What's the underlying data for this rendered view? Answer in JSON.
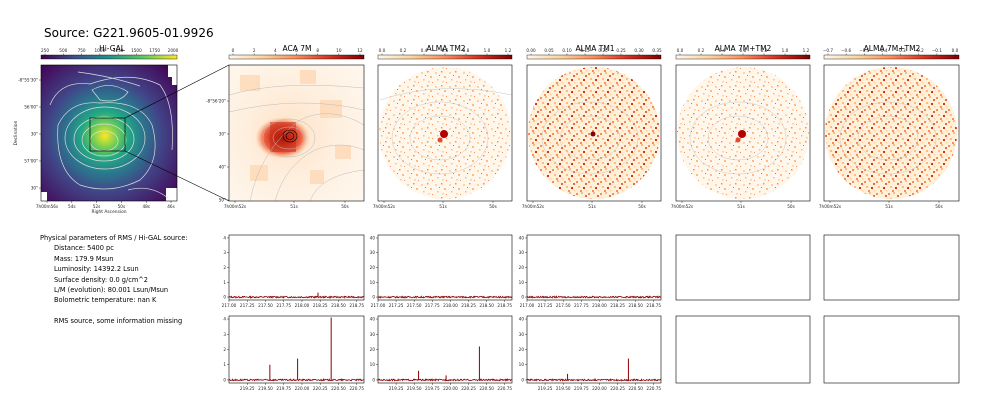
{
  "title": "Source: G221.9605-01.9926",
  "panels": [
    {
      "title": "Hi-GAL",
      "colorbar_ticks": [
        "250",
        "500",
        "750",
        "1000",
        "1250",
        "1500",
        "1750",
        "2000"
      ],
      "colormap": "viridis"
    },
    {
      "title": "ACA 7M",
      "colorbar_ticks": [
        "0",
        "2",
        "4",
        "6",
        "8",
        "10",
        "12"
      ],
      "colormap": "orrd"
    },
    {
      "title": "ALMA TM2",
      "colorbar_ticks": [
        "0.0",
        "0.2",
        "0.4",
        "0.6",
        "0.8",
        "1.0",
        "1.2"
      ],
      "colormap": "orrd"
    },
    {
      "title": "ALMA TM1",
      "colorbar_ticks": [
        "0.00",
        "0.05",
        "0.10",
        "0.15",
        "0.20",
        "0.25",
        "0.30",
        "0.35"
      ],
      "colormap": "orrd"
    },
    {
      "title": "ALMA 7M+TM2",
      "colorbar_ticks": [
        "0.0",
        "0.2",
        "0.4",
        "0.6",
        "0.8",
        "1.0",
        "1.2"
      ],
      "colormap": "orrd"
    },
    {
      "title": "ALMA 7M+TM2",
      "colorbar_ticks": [
        "−0.7",
        "−0.6",
        "−0.5",
        "−0.4",
        "−0.3",
        "−0.2",
        "−0.1",
        "0.0"
      ],
      "colormap": "orrd"
    }
  ],
  "higal_axes": {
    "xlabel": "Right Ascension",
    "ylabel": "Declination",
    "xticks": [
      "7h00m56s",
      "54s",
      "52s",
      "50s",
      "48s",
      "46s"
    ],
    "yticks": [
      "-8°55'30\"",
      "56'00\"",
      "30\"",
      "57'00\"",
      "30\""
    ]
  },
  "aca_axes": {
    "xticks": [
      "7h00m52s",
      "51s",
      "50s"
    ],
    "yticks": [
      "-8°56'20\"",
      "30\"",
      "40\"",
      "50\""
    ]
  },
  "tm_axes": {
    "xticks": [
      "7h00m52s",
      "51s",
      "50s"
    ]
  },
  "info": {
    "header": "Physical parameters of RMS / Hi-GAL source:",
    "lines": [
      "Distance: 5400 pc",
      "Mass: 179.9 Msun",
      "Luminosity: 14392.2 Lsun",
      "Surface density: 0.0 g/cm^2",
      "L/M (evolution): 80.001 Lsun/Msun",
      "Bolometric temperature: nan K"
    ],
    "footer": "RMS source, some information missing"
  },
  "colors": {
    "spectrum_line": "#8b0000",
    "frame": "#000000",
    "contour": "#c8c8c8"
  },
  "chart_data": [
    {
      "type": "line",
      "title": "",
      "xticks": [
        "217.00",
        "217.25",
        "217.50",
        "217.75",
        "218.00",
        "218.25",
        "218.50",
        "218.75"
      ],
      "yticks": [
        "0",
        "1",
        "2",
        "3",
        "4"
      ],
      "xlim": [
        217.0,
        218.85
      ],
      "ylim": [
        -0.2,
        4.2
      ],
      "baseline": 0.0,
      "peaks": [
        {
          "x": 218.22,
          "y": 0.3
        }
      ]
    },
    {
      "type": "line",
      "title": "",
      "xticks": [
        "217.00",
        "217.25",
        "217.50",
        "217.75",
        "218.00",
        "218.25",
        "218.50",
        "218.75"
      ],
      "yticks": [
        "0",
        "10",
        "20",
        "30",
        "40"
      ],
      "xlim": [
        217.0,
        218.85
      ],
      "ylim": [
        -2,
        42
      ],
      "baseline": 0.0,
      "peaks": []
    },
    {
      "type": "line",
      "title": "",
      "xticks": [
        "217.00",
        "217.25",
        "217.50",
        "217.75",
        "218.00",
        "218.25",
        "218.50",
        "218.75"
      ],
      "yticks": [
        "0",
        "10",
        "20",
        "30",
        "40"
      ],
      "xlim": [
        217.0,
        218.85
      ],
      "ylim": [
        -2,
        42
      ],
      "baseline": 0.0,
      "peaks": []
    },
    {
      "type": "line",
      "title": "",
      "xticks": [
        "219.25",
        "219.50",
        "219.75",
        "220.00",
        "220.25",
        "220.50",
        "220.75"
      ],
      "yticks": [
        "0",
        "1",
        "2",
        "3",
        "4"
      ],
      "xlim": [
        219.0,
        220.85
      ],
      "ylim": [
        -0.2,
        4.2
      ],
      "baseline": 0.0,
      "peaks": [
        {
          "x": 219.56,
          "y": 1.0
        },
        {
          "x": 219.94,
          "y": 1.4
        },
        {
          "x": 220.4,
          "y": 4.1
        }
      ]
    },
    {
      "type": "line",
      "title": "",
      "xticks": [
        "219.25",
        "219.50",
        "219.75",
        "220.00",
        "220.25",
        "220.50",
        "220.75"
      ],
      "yticks": [
        "0",
        "10",
        "20",
        "30",
        "40"
      ],
      "xlim": [
        219.0,
        220.85
      ],
      "ylim": [
        -2,
        42
      ],
      "baseline": 0.0,
      "peaks": [
        {
          "x": 219.56,
          "y": 6
        },
        {
          "x": 219.94,
          "y": 3
        },
        {
          "x": 220.4,
          "y": 22
        }
      ]
    },
    {
      "type": "line",
      "title": "",
      "xticks": [
        "219.25",
        "219.50",
        "219.75",
        "220.00",
        "220.25",
        "220.50",
        "220.75"
      ],
      "yticks": [
        "0",
        "10",
        "20",
        "30",
        "40"
      ],
      "xlim": [
        219.0,
        220.85
      ],
      "ylim": [
        -2,
        42
      ],
      "baseline": 0.0,
      "peaks": [
        {
          "x": 219.56,
          "y": 4
        },
        {
          "x": 219.94,
          "y": 1
        },
        {
          "x": 220.4,
          "y": 14
        }
      ]
    }
  ]
}
